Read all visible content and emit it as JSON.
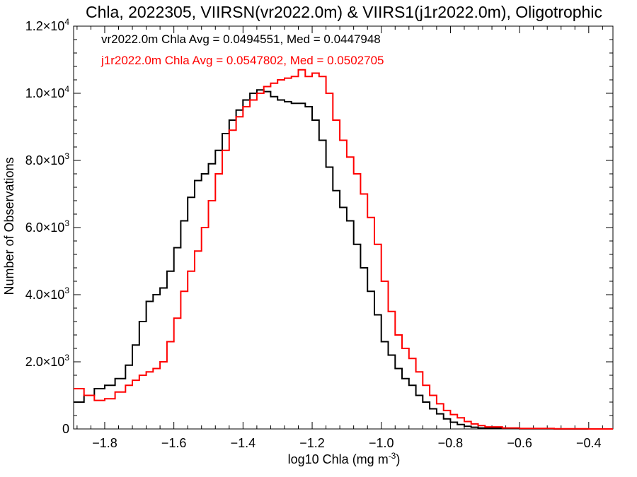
{
  "chart_data": {
    "type": "line",
    "title": "Chla, 2022305, VIIRSN(vr2022.0m) & VIIRS1(j1r2022.0m), Oligotrophic",
    "xlabel": "log10 Chla (mg m",
    "xlabel_sup": "-3",
    "xlabel_close": ")",
    "ylabel": "Number of Observations",
    "xlim": [
      -1.89,
      -0.33
    ],
    "ylim": [
      0,
      12000
    ],
    "grid": false,
    "x_ticks": [
      -1.8,
      -1.6,
      -1.4,
      -1.2,
      -1.0,
      -0.8,
      -0.6,
      -0.4
    ],
    "x_tick_labels": [
      "−1.8",
      "−1.6",
      "−1.4",
      "−1.2",
      "−1.0",
      "−0.8",
      "−0.6",
      "−0.4"
    ],
    "y_ticks": [
      {
        "value": 0,
        "base": "0",
        "exp": ""
      },
      {
        "value": 2000,
        "base": "2.0×10",
        "exp": "3"
      },
      {
        "value": 4000,
        "base": "4.0×10",
        "exp": "3"
      },
      {
        "value": 6000,
        "base": "6.0×10",
        "exp": "3"
      },
      {
        "value": 8000,
        "base": "8.0×10",
        "exp": "3"
      },
      {
        "value": 10000,
        "base": "1.0×10",
        "exp": "4"
      },
      {
        "value": 12000,
        "base": "1.2×10",
        "exp": "4"
      }
    ],
    "stats": [
      {
        "text": "vr2022.0m Chla Avg = 0.0494551, Med = 0.0447948",
        "color": "#000000"
      },
      {
        "text": "j1r2022.0m Chla Avg = 0.0547802, Med = 0.0502705",
        "color": "#ff0000"
      }
    ],
    "series": [
      {
        "color": "#000000",
        "x": [
          -1.89,
          -1.86,
          -1.83,
          -1.8,
          -1.77,
          -1.74,
          -1.72,
          -1.7,
          -1.68,
          -1.66,
          -1.64,
          -1.62,
          -1.6,
          -1.58,
          -1.56,
          -1.54,
          -1.52,
          -1.5,
          -1.48,
          -1.46,
          -1.44,
          -1.42,
          -1.4,
          -1.38,
          -1.36,
          -1.34,
          -1.32,
          -1.3,
          -1.28,
          -1.26,
          -1.24,
          -1.22,
          -1.2,
          -1.18,
          -1.16,
          -1.14,
          -1.12,
          -1.1,
          -1.08,
          -1.06,
          -1.04,
          -1.02,
          -1.0,
          -0.98,
          -0.96,
          -0.94,
          -0.92,
          -0.9,
          -0.88,
          -0.86,
          -0.84,
          -0.82,
          -0.8,
          -0.78,
          -0.76,
          -0.74,
          -0.72,
          -0.7,
          -0.65,
          -0.6,
          -0.5,
          -0.4,
          -0.33
        ],
        "y": [
          800,
          1000,
          1200,
          1300,
          1500,
          1900,
          2500,
          3200,
          3800,
          4000,
          4200,
          4700,
          5400,
          6200,
          6900,
          7400,
          7600,
          7900,
          8300,
          8800,
          9200,
          9500,
          9800,
          10000,
          10100,
          10050,
          9900,
          9800,
          9750,
          9700,
          9700,
          9600,
          9200,
          8600,
          7800,
          7100,
          6600,
          6200,
          5500,
          4800,
          4100,
          3400,
          2600,
          2200,
          1800,
          1500,
          1300,
          1000,
          800,
          600,
          450,
          300,
          200,
          130,
          80,
          50,
          30,
          20,
          10,
          5,
          0,
          0,
          0
        ]
      },
      {
        "color": "#ff0000",
        "x": [
          -1.89,
          -1.86,
          -1.83,
          -1.8,
          -1.77,
          -1.74,
          -1.72,
          -1.7,
          -1.68,
          -1.66,
          -1.64,
          -1.62,
          -1.6,
          -1.58,
          -1.56,
          -1.54,
          -1.52,
          -1.5,
          -1.48,
          -1.46,
          -1.44,
          -1.42,
          -1.4,
          -1.38,
          -1.36,
          -1.34,
          -1.32,
          -1.3,
          -1.28,
          -1.26,
          -1.24,
          -1.22,
          -1.2,
          -1.18,
          -1.16,
          -1.14,
          -1.12,
          -1.1,
          -1.08,
          -1.06,
          -1.04,
          -1.02,
          -1.0,
          -0.98,
          -0.96,
          -0.94,
          -0.92,
          -0.9,
          -0.88,
          -0.86,
          -0.84,
          -0.82,
          -0.8,
          -0.78,
          -0.76,
          -0.74,
          -0.72,
          -0.7,
          -0.65,
          -0.6,
          -0.5,
          -0.4,
          -0.33
        ],
        "y": [
          1200,
          1000,
          850,
          900,
          1100,
          1300,
          1450,
          1600,
          1700,
          1800,
          2000,
          2600,
          3300,
          4100,
          4700,
          5300,
          6000,
          6800,
          7600,
          8300,
          8900,
          9300,
          9600,
          9800,
          10000,
          10200,
          10300,
          10400,
          10450,
          10500,
          10700,
          10500,
          10600,
          10500,
          10000,
          9200,
          8600,
          8100,
          7600,
          7000,
          6300,
          5500,
          4400,
          3500,
          2800,
          2400,
          2100,
          1700,
          1300,
          1000,
          750,
          550,
          430,
          330,
          220,
          150,
          100,
          60,
          30,
          15,
          5,
          0,
          0
        ]
      }
    ]
  }
}
